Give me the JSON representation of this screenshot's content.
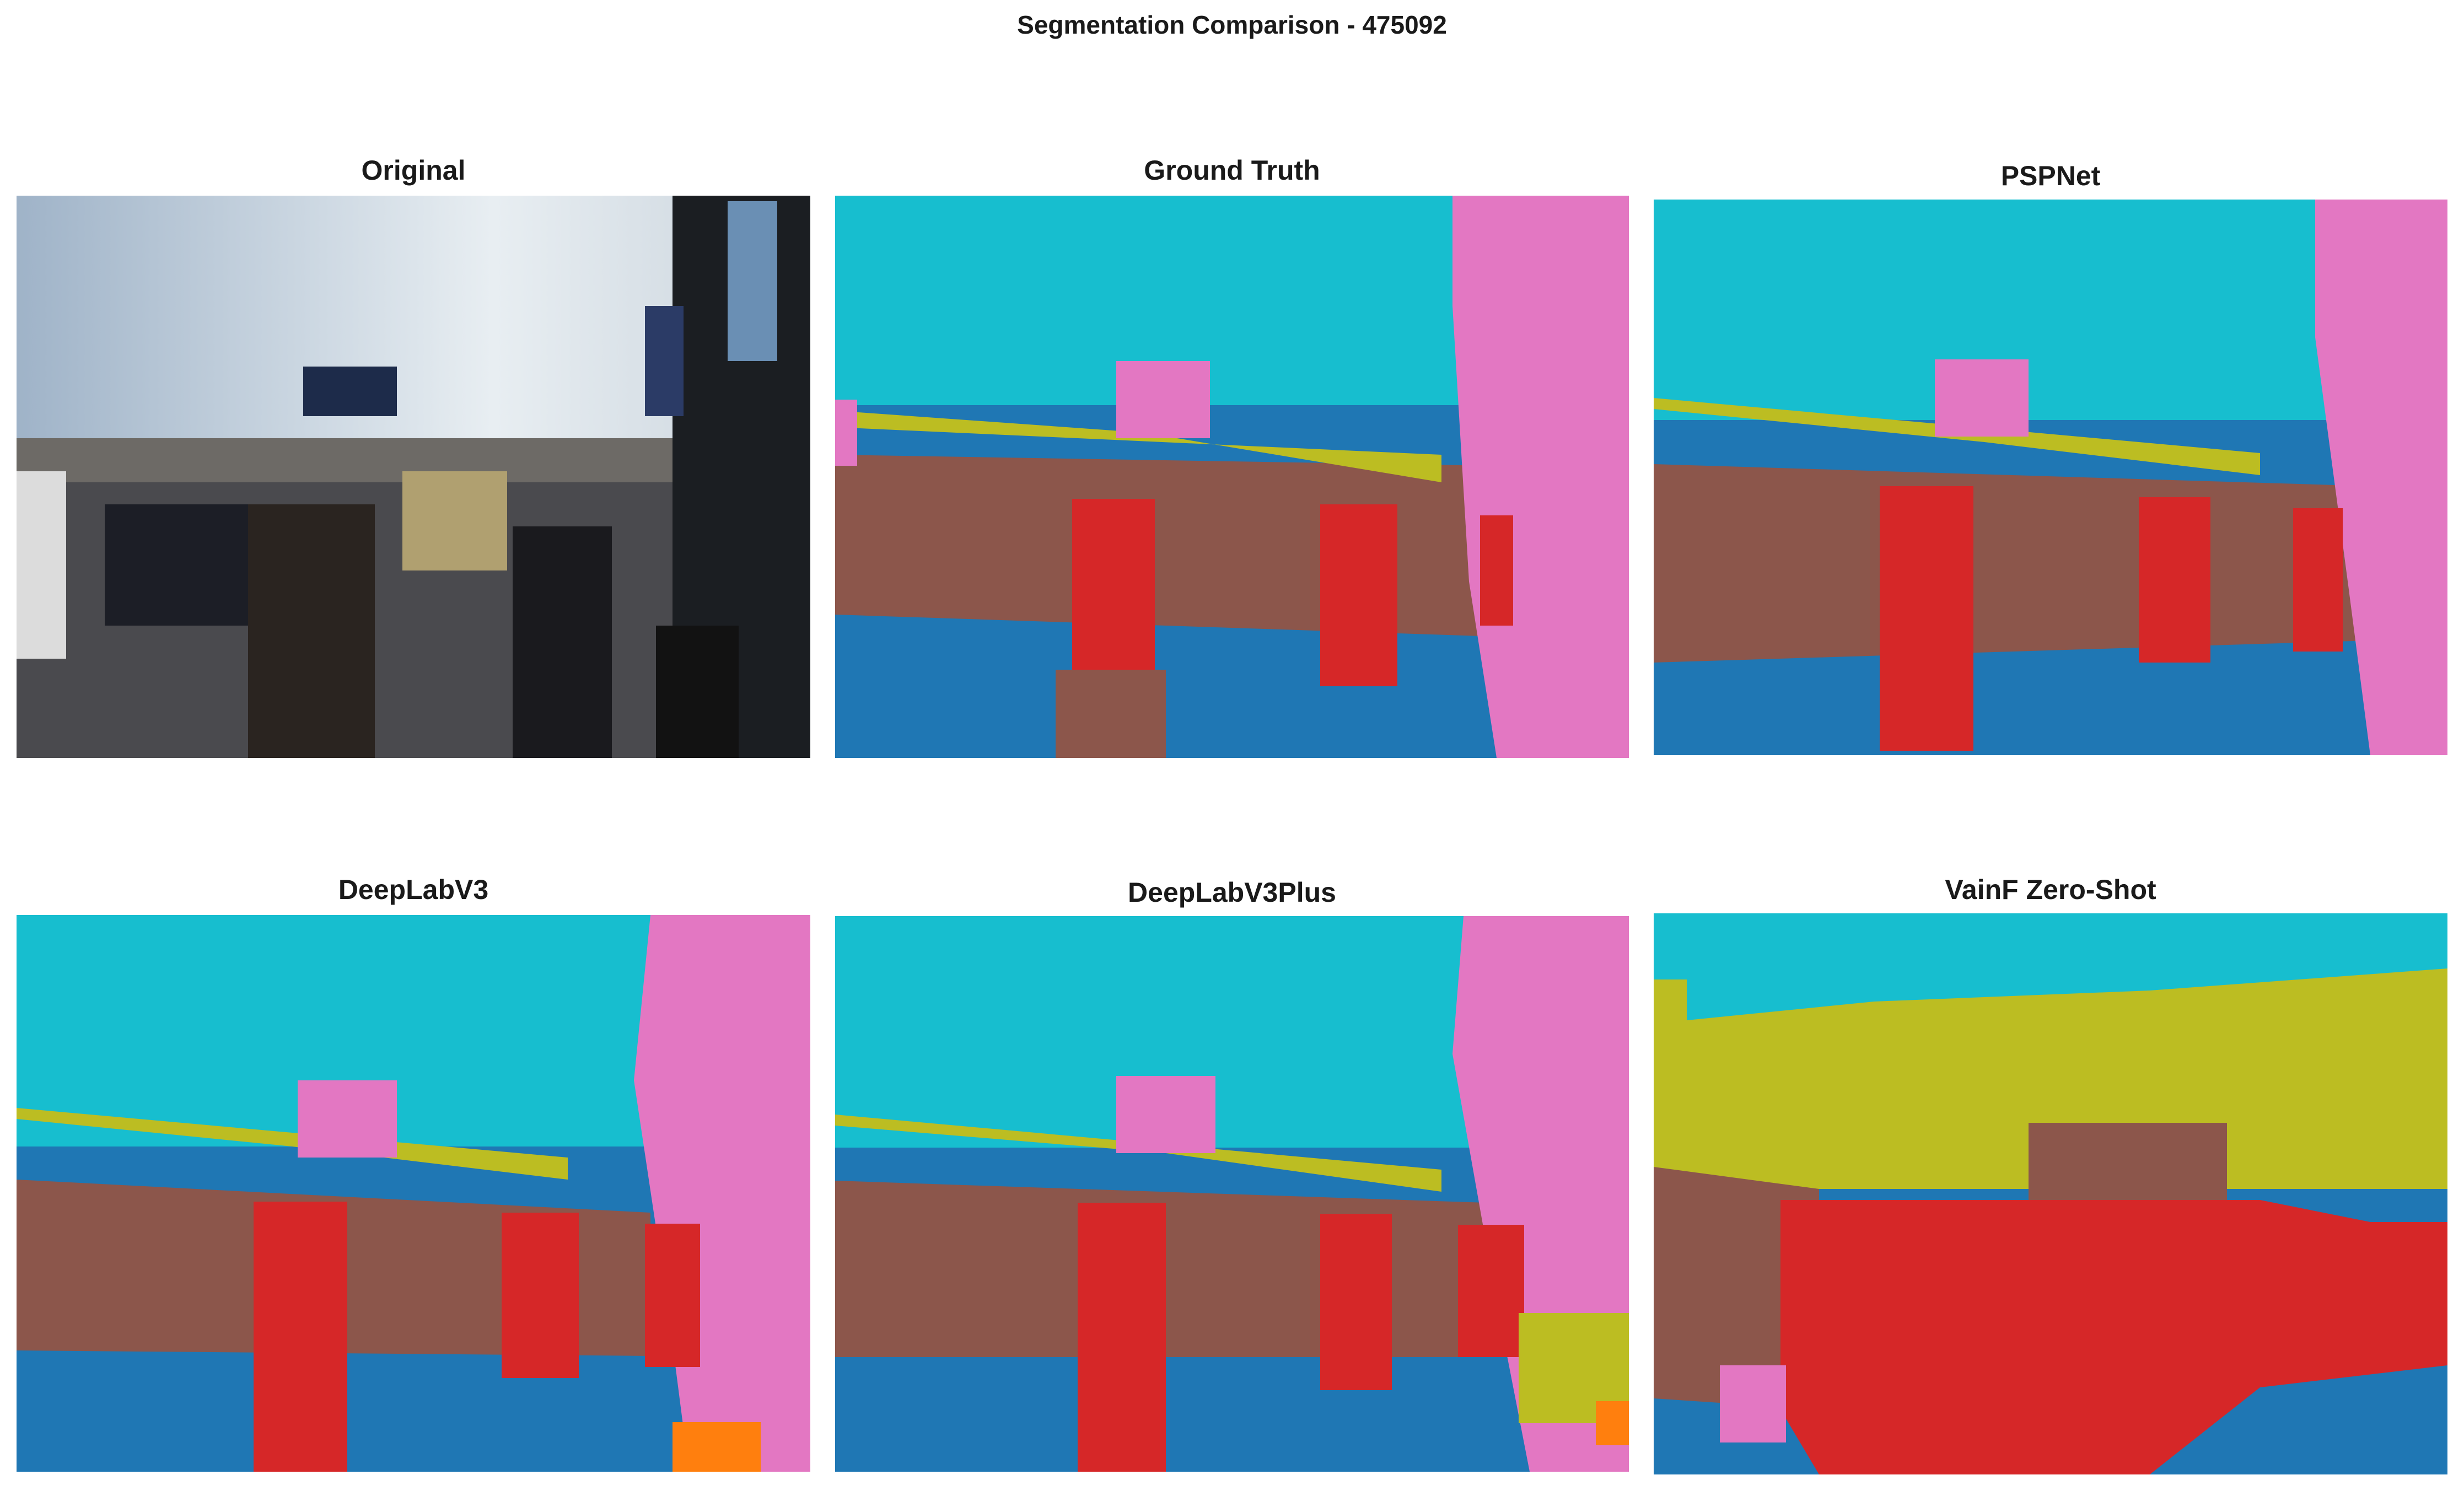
{
  "figure": {
    "title": "Segmentation Comparison - 475092"
  },
  "panels": [
    {
      "id": "original",
      "title": "Original"
    },
    {
      "id": "ground-truth",
      "title": "Ground Truth"
    },
    {
      "id": "pspnet",
      "title": "PSPNet"
    },
    {
      "id": "deeplabv3",
      "title": "DeepLabV3"
    },
    {
      "id": "deeplabv3plus",
      "title": "DeepLabV3Plus"
    },
    {
      "id": "vainf-zero-shot",
      "title": "VainF Zero-Shot"
    }
  ],
  "palette": {
    "sky": "#17becf",
    "building": "#e377c2",
    "vegetation": "#bcbd22",
    "vehicle": "#8c564b",
    "road": "#1f77b4",
    "person": "#d62728",
    "other": "#ff7f0e"
  }
}
